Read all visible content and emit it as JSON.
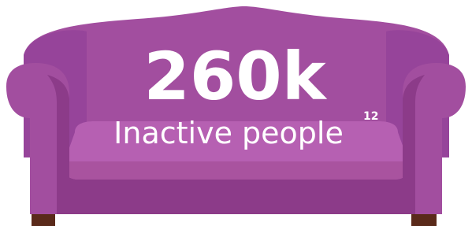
{
  "headline": {
    "value": "260k",
    "label": "Inactive people",
    "footnote": "12"
  }
}
